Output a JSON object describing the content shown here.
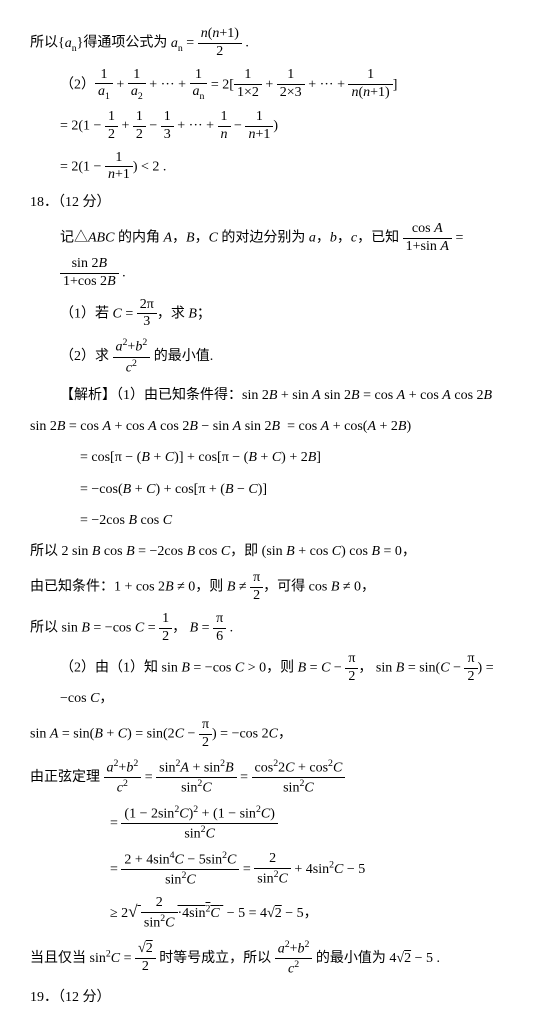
{
  "lines": [
    {
      "cls": "line",
      "html": "所以{<span class='ital'>a<sub>n</sub></span>}得通项公式为 <span class='ital'>a<sub>n</sub></span> = <span class='frac'><span class='num'><span class='ital'>n</span>(<span class='ital'>n</span>+1)</span><span class='den'>2</span></span> ."
    },
    {
      "cls": "line indent1",
      "html": "（2）<span class='frac'><span class='num'>1</span><span class='den'><span class='ital'>a</span><sub>1</sub></span></span> + <span class='frac'><span class='num'>1</span><span class='den'><span class='ital'>a</span><sub>2</sub></span></span> + ··· + <span class='frac'><span class='num'>1</span><span class='den'><span class='ital'>a<sub>n</sub></span></span></span> = 2[<span class='frac'><span class='num'>1</span><span class='den'>1×2</span></span> + <span class='frac'><span class='num'>1</span><span class='den'>2×3</span></span> + ··· + <span class='frac'><span class='num'>1</span><span class='den'><span class='ital'>n</span>(<span class='ital'>n</span>+1)</span></span>]"
    },
    {
      "cls": "line indent1",
      "html": "= 2(1 − <span class='frac'><span class='num'>1</span><span class='den'>2</span></span> + <span class='frac'><span class='num'>1</span><span class='den'>2</span></span> − <span class='frac'><span class='num'>1</span><span class='den'>3</span></span> + ··· + <span class='frac'><span class='num'>1</span><span class='den'><span class='ital'>n</span></span></span> − <span class='frac'><span class='num'>1</span><span class='den'><span class='ital'>n</span>+1</span></span>)"
    },
    {
      "cls": "line indent1",
      "html": "= 2(1 − <span class='frac'><span class='num'>1</span><span class='den'><span class='ital'>n</span>+1</span></span>) &lt; 2 ."
    },
    {
      "cls": "line",
      "html": "18．（12 分）"
    },
    {
      "cls": "line indent1",
      "html": "记△<span class='ital'>ABC</span> 的内角 <span class='ital'>A</span>，<span class='ital'>B</span>，<span class='ital'>C</span> 的对边分别为 <span class='ital'>a</span>，<span class='ital'>b</span>，<span class='ital'>c</span>，已知 <span class='frac'><span class='num'>cos <span class='ital'>A</span></span><span class='den'>1+sin <span class='ital'>A</span></span></span> = <span class='frac'><span class='num'>sin 2<span class='ital'>B</span></span><span class='den'>1+cos 2<span class='ital'>B</span></span></span> ."
    },
    {
      "cls": "line indent1",
      "html": "（1）若 <span class='ital'>C</span> = <span class='frac'><span class='num'>2π</span><span class='den'>3</span></span>，求 <span class='ital'>B</span>；"
    },
    {
      "cls": "line indent1",
      "html": "（2）求 <span class='frac'><span class='num'><span class='ital'>a</span><sup>2</sup>+<span class='ital'>b</span><sup>2</sup></span><span class='den'><span class='ital'>c</span><sup>2</sup></span></span> 的最小值."
    },
    {
      "cls": "line indent1",
      "html": "【解析】（1）由已知条件得：sin 2<span class='ital'>B</span> + sin <span class='ital'>A</span> sin 2<span class='ital'>B</span> = cos <span class='ital'>A</span> + cos <span class='ital'>A</span> cos 2<span class='ital'>B</span>"
    },
    {
      "cls": "line",
      "html": "sin 2<span class='ital'>B</span> = cos <span class='ital'>A</span> + cos <span class='ital'>A</span> cos 2<span class='ital'>B</span> − sin <span class='ital'>A</span> sin 2<span class='ital'>B</span> &nbsp;= cos <span class='ital'>A</span> + cos(<span class='ital'>A</span> + 2<span class='ital'>B</span>)"
    },
    {
      "cls": "line indent2",
      "html": "= cos[π − (<span class='ital'>B</span> + <span class='ital'>C</span>)] + cos[π − (<span class='ital'>B</span> + <span class='ital'>C</span>) + 2<span class='ital'>B</span>]"
    },
    {
      "cls": "line indent2",
      "html": "= −cos(<span class='ital'>B</span> + <span class='ital'>C</span>) + cos[π + (<span class='ital'>B</span> − <span class='ital'>C</span>)]"
    },
    {
      "cls": "line indent2",
      "html": "= −2cos <span class='ital'>B</span> cos <span class='ital'>C</span>"
    },
    {
      "cls": "line",
      "html": "所以 2 sin <span class='ital'>B</span> cos <span class='ital'>B</span> = −2cos <span class='ital'>B</span> cos <span class='ital'>C</span>，即 (sin <span class='ital'>B</span> + cos <span class='ital'>C</span>) cos <span class='ital'>B</span> = 0，"
    },
    {
      "cls": "line",
      "html": "由已知条件：1 + cos 2<span class='ital'>B</span> ≠ 0，则 <span class='ital'>B</span> ≠ <span class='frac'><span class='num'>π</span><span class='den'>2</span></span>，可得 cos <span class='ital'>B</span> ≠ 0，"
    },
    {
      "cls": "line",
      "html": "所以 sin <span class='ital'>B</span> = −cos <span class='ital'>C</span> = <span class='frac'><span class='num'>1</span><span class='den'>2</span></span>，&nbsp;<span class='ital'>B</span> = <span class='frac'><span class='num'>π</span><span class='den'>6</span></span> ."
    },
    {
      "cls": "line indent1",
      "html": "（2）由（1）知 sin <span class='ital'>B</span> = −cos <span class='ital'>C</span> &gt; 0，则 <span class='ital'>B</span> = <span class='ital'>C</span> − <span class='frac'><span class='num'>π</span><span class='den'>2</span></span>，&nbsp;sin <span class='ital'>B</span> = sin(<span class='ital'>C</span> − <span class='frac'><span class='num'>π</span><span class='den'>2</span></span>) = −cos <span class='ital'>C</span>，"
    },
    {
      "cls": "line",
      "html": "sin <span class='ital'>A</span> = sin(<span class='ital'>B</span> + <span class='ital'>C</span>) = sin(2<span class='ital'>C</span> − <span class='frac'><span class='num'>π</span><span class='den'>2</span></span>) = −cos 2<span class='ital'>C</span>，"
    },
    {
      "cls": "line",
      "html": "由正弦定理 <span class='frac'><span class='num'><span class='ital'>a</span><sup>2</sup>+<span class='ital'>b</span><sup>2</sup></span><span class='den'><span class='ital'>c</span><sup>2</sup></span></span> = <span class='frac'><span class='num'>sin<sup>2</sup><span class='ital'>A</span> + sin<sup>2</sup><span class='ital'>B</span></span><span class='den'>sin<sup>2</sup><span class='ital'>C</span></span></span> = <span class='frac'><span class='num'>cos<sup>2</sup>2<span class='ital'>C</span> + cos<sup>2</sup><span class='ital'>C</span></span><span class='den'>sin<sup>2</sup><span class='ital'>C</span></span></span>"
    },
    {
      "cls": "line indent3",
      "html": "= <span class='frac'><span class='num'>(1 − 2sin<sup>2</sup><span class='ital'>C</span>)<sup>2</sup> + (1 − sin<sup>2</sup><span class='ital'>C</span>)</span><span class='den'>sin<sup>2</sup><span class='ital'>C</span></span></span>"
    },
    {
      "cls": "line indent3",
      "html": "= <span class='frac'><span class='num'>2 + 4sin<sup>4</sup><span class='ital'>C</span> − 5sin<sup>2</sup><span class='ital'>C</span></span><span class='den'>sin<sup>2</sup><span class='ital'>C</span></span></span> = <span class='frac'><span class='num'>2</span><span class='den'>sin<sup>2</sup><span class='ital'>C</span></span></span> + 4sin<sup>2</sup><span class='ital'>C</span> − 5"
    },
    {
      "cls": "line indent3",
      "html": "≥ 2<span style='font-size:1.2em'>√</span><span class='sqrt'>&nbsp;<span class='frac'><span class='num'>2</span><span class='den'>sin<sup>2</sup><span class='ital'>C</span></span></span>·4sin<sup>2</sup><span class='ital'>C</span>&nbsp;</span> − 5 = 4√<span class='sqrt'>2</span> − 5，"
    },
    {
      "cls": "line",
      "html": "当且仅当 sin<sup>2</sup><span class='ital'>C</span> = <span class='frac'><span class='num'>√<span class='sqrt'>2</span></span><span class='den'>2</span></span> 时等号成立，所以 <span class='frac'><span class='num'><span class='ital'>a</span><sup>2</sup>+<span class='ital'>b</span><sup>2</sup></span><span class='den'><span class='ital'>c</span><sup>2</sup></span></span> 的最小值为 4√<span class='sqrt'>2</span> − 5 ."
    },
    {
      "cls": "line",
      "html": "19．（12 分）"
    }
  ]
}
